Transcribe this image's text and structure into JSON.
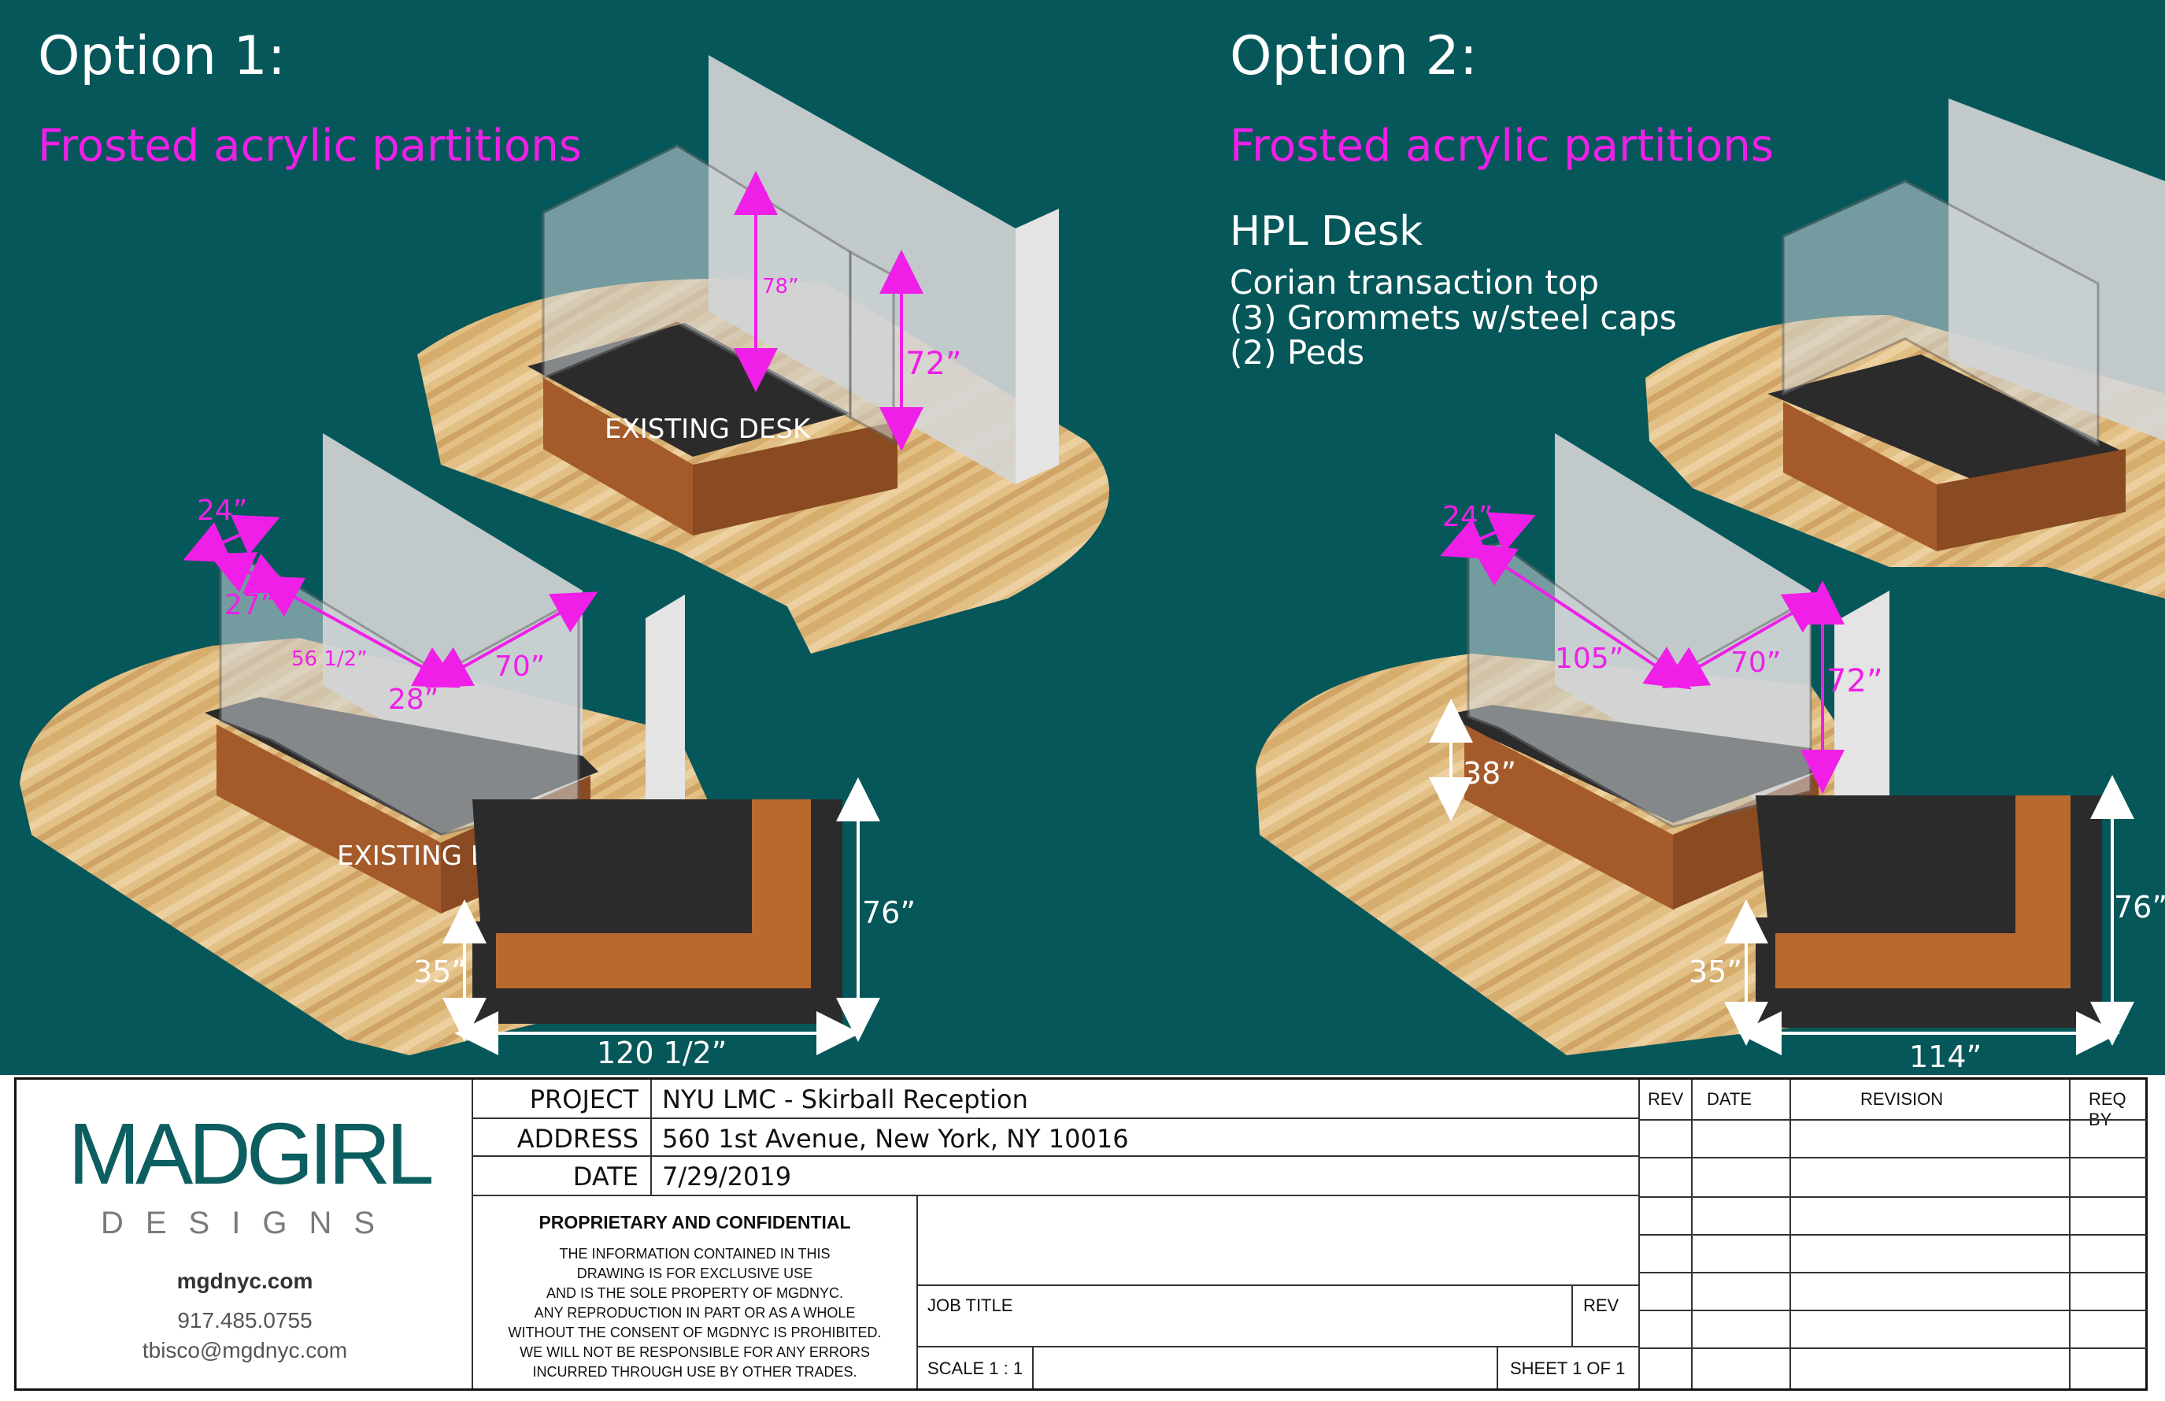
{
  "option1": {
    "title": "Option 1:",
    "subtitle": "Frosted acrylic partitions",
    "desk_label": "EXISTING DESK",
    "dims": {
      "d78": "78”",
      "d72": "72”",
      "d24": "24”",
      "d27": "27”",
      "d56": "56 1/2”",
      "d28": "28”",
      "d70": "70”",
      "d76": "76”",
      "d35": "35”",
      "d120": "120 1/2”"
    }
  },
  "option2": {
    "title": "Option 2:",
    "subtitle": "Frosted acrylic partitions",
    "heading": "HPL Desk",
    "specs": [
      "Corian transaction top",
      "(3) Grommets w/steel caps",
      "(2) Peds"
    ],
    "dims": {
      "d24": "24”",
      "d105": "105”",
      "d70": "70”",
      "d72": "72”",
      "d38": "38”",
      "d76": "76”",
      "d35": "35”",
      "d114": "114”"
    }
  },
  "titleblock": {
    "logo_main": "MADGIRL",
    "logo_sub": "DESIGNS",
    "website": "mgdnyc.com",
    "phone": "917.485.0755",
    "email": "tbisco@mgdnyc.com",
    "project_label": "PROJECT",
    "project_value": "NYU LMC - Skirball Reception",
    "address_label": "ADDRESS",
    "address_value": "560 1st Avenue, New York, NY 10016",
    "date_label": "DATE",
    "date_value": "7/29/2019",
    "confidential_title": "PROPRIETARY AND CONFIDENTIAL",
    "confidential_lines": [
      "THE INFORMATION CONTAINED IN THIS",
      "DRAWING IS FOR EXCLUSIVE USE",
      "AND IS THE SOLE PROPERTY OF MGDNYC.",
      "ANY REPRODUCTION IN PART OR AS A WHOLE",
      "WITHOUT THE CONSENT OF MGDNYC IS PROHIBITED.",
      "WE WILL NOT BE RESPONSIBLE FOR ANY ERRORS",
      "INCURRED THROUGH USE BY OTHER TRADES."
    ],
    "job_title_label": "JOB  TITLE",
    "rev_label": "REV",
    "scale_label": "SCALE   1 : 1",
    "sheet_label": "SHEET 1 OF 1",
    "rev_headers": [
      "REV",
      "DATE",
      "REVISION",
      "REQ BY"
    ]
  },
  "colors": {
    "background": "#06575a",
    "accent": "#ef1fe8",
    "floor": "#e2bf85",
    "wood": "#a45a2a",
    "countertop": "#2b2b2b",
    "wall": "#d8d8d8",
    "glass": "#c9ccd0"
  }
}
